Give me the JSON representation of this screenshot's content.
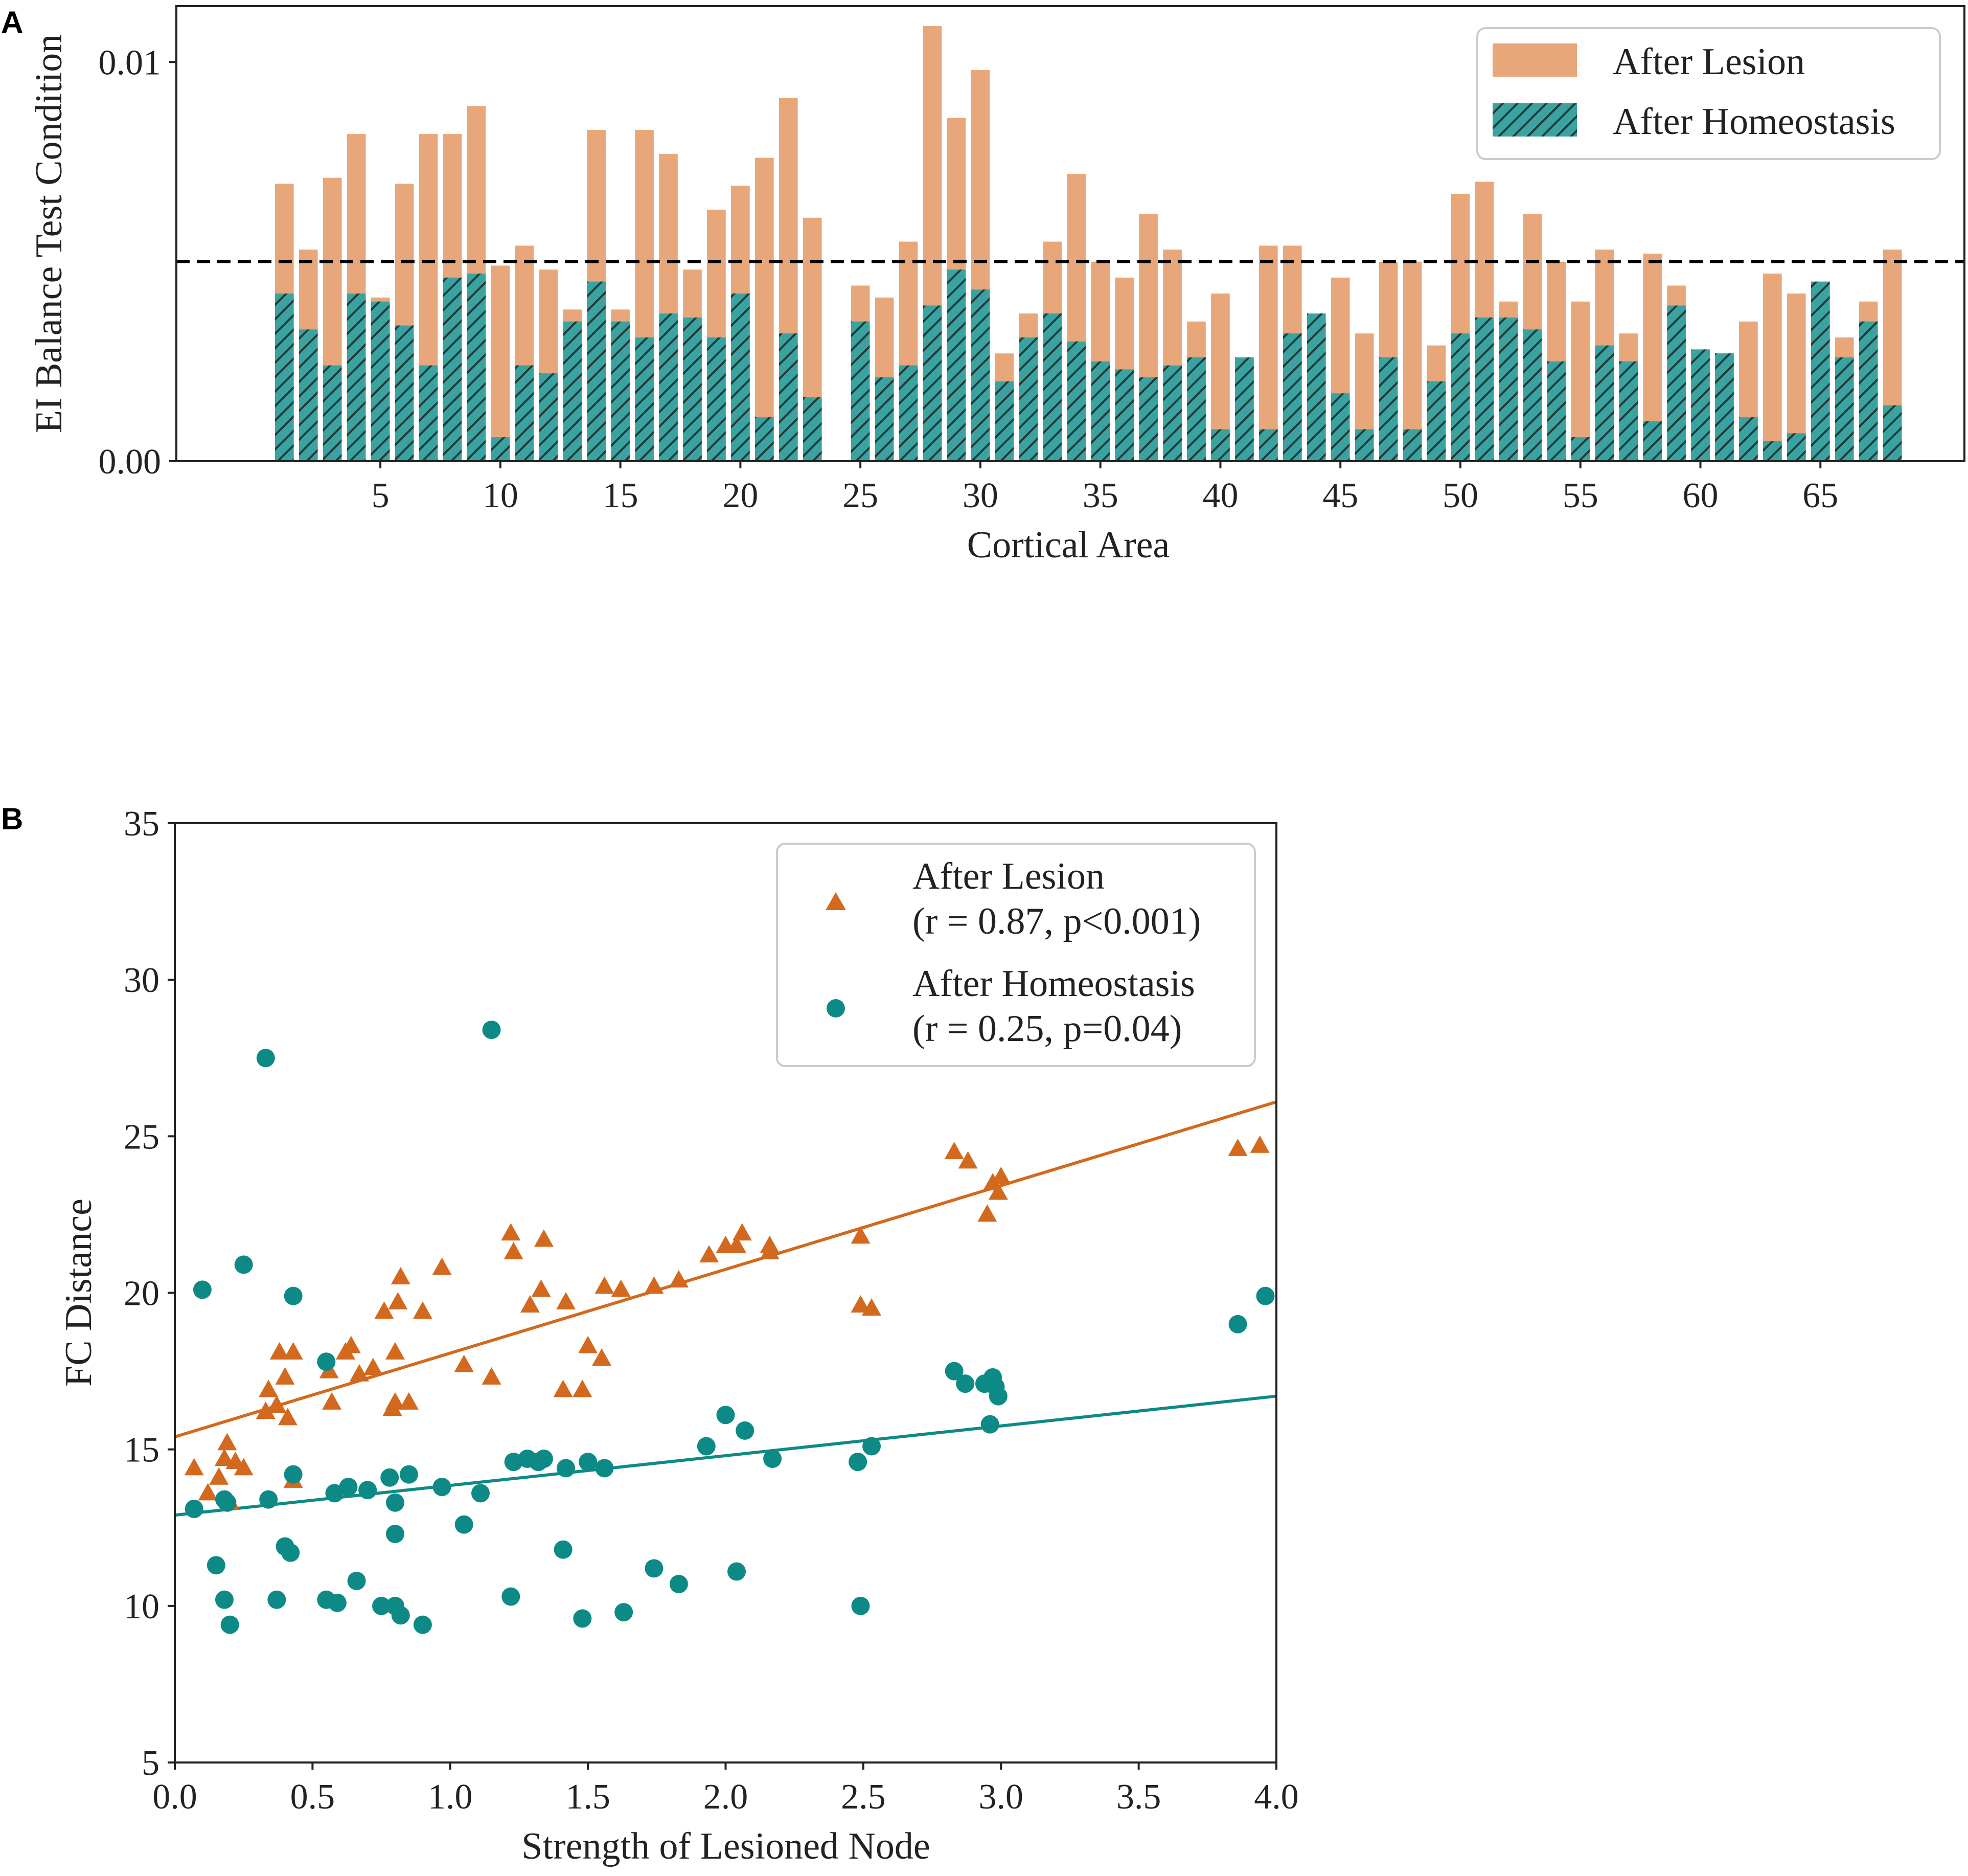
{
  "colors": {
    "lesion_bar": "#e8a77a",
    "homeo_bar": "#3aa3a1",
    "homeo_hatch": "#1f3b38",
    "lesion_marker": "#d2691e",
    "homeo_marker": "#0e8a86",
    "axis": "#222222",
    "threshold": "#000000"
  },
  "chart_data": [
    {
      "panel": "A",
      "type": "bar",
      "xlabel": "Cortical Area",
      "ylabel": "EI Balance Test Condition",
      "xlim": [
        -3.5,
        71
      ],
      "ylim": [
        0,
        0.0114
      ],
      "xticks": [
        5,
        10,
        15,
        20,
        25,
        30,
        35,
        40,
        45,
        50,
        55,
        60,
        65
      ],
      "yticks": [
        {
          "value": 0,
          "label": "0.00"
        },
        {
          "value": 0.01,
          "label": "0.01"
        }
      ],
      "threshold": 0.005,
      "legend_location": "upper right",
      "legend": [
        "After Lesion",
        "After Homeostasis"
      ],
      "categories": [
        1,
        2,
        3,
        4,
        5,
        6,
        7,
        8,
        9,
        10,
        11,
        12,
        13,
        14,
        15,
        16,
        17,
        18,
        19,
        20,
        21,
        22,
        23,
        24,
        25,
        26,
        27,
        28,
        29,
        30,
        31,
        32,
        33,
        34,
        35,
        36,
        37,
        38,
        39,
        40,
        41,
        42,
        43,
        44,
        45,
        46,
        47,
        48,
        49,
        50,
        51,
        52,
        53,
        54,
        55,
        56,
        57,
        58,
        59,
        60,
        61,
        62,
        63,
        64,
        65,
        66,
        67,
        68
      ],
      "series": [
        {
          "name": "After Lesion",
          "values": [
            0.00695,
            0.0053,
            0.0071,
            0.0082,
            0.0041,
            0.00695,
            0.0082,
            0.0082,
            0.0089,
            0.0049,
            0.0054,
            0.0048,
            0.0038,
            0.0083,
            0.0038,
            0.0083,
            0.0077,
            0.0048,
            0.0063,
            0.0069,
            0.0076,
            0.0091,
            0.0061,
            0,
            0.0044,
            0.0041,
            0.0055,
            0.0109,
            0.0086,
            0.0098,
            0.0027,
            0.0037,
            0.0055,
            0.0072,
            0.005,
            0.0046,
            0.0062,
            0.0053,
            0.0035,
            0.0042,
            0.0026,
            0.0054,
            0.0054,
            0.0036,
            0.0046,
            0.0032,
            0.005,
            0.005,
            0.0029,
            0.0067,
            0.007,
            0.004,
            0.0062,
            0.005,
            0.004,
            0.0053,
            0.0032,
            0.0052,
            0.0044,
            0.0028,
            0.0027,
            0.0035,
            0.0047,
            0.0042,
            0.0045,
            0.0031,
            0.004,
            0.0053
          ]
        },
        {
          "name": "After Homeostasis",
          "values": [
            0.0042,
            0.0033,
            0.0024,
            0.0042,
            0.004,
            0.0034,
            0.0024,
            0.0046,
            0.0047,
            0.0006,
            0.0024,
            0.0022,
            0.0035,
            0.0045,
            0.0035,
            0.0031,
            0.0037,
            0.0036,
            0.0031,
            0.0042,
            0.0011,
            0.0032,
            0.0016,
            0,
            0.0035,
            0.0021,
            0.0024,
            0.0039,
            0.0048,
            0.0043,
            0.002,
            0.0031,
            0.0037,
            0.003,
            0.0025,
            0.0023,
            0.0021,
            0.0024,
            0.0026,
            0.0008,
            0.0026,
            0.0008,
            0.0032,
            0.0037,
            0.0017,
            0.0008,
            0.0026,
            0.0008,
            0.002,
            0.0032,
            0.0036,
            0.0036,
            0.0033,
            0.0025,
            0.0006,
            0.0029,
            0.0025,
            0.001,
            0.0039,
            0.0028,
            0.0027,
            0.0011,
            0.0005,
            0.0007,
            0.0045,
            0.0026,
            0.0035,
            0.0014
          ]
        }
      ]
    },
    {
      "panel": "B",
      "type": "scatter",
      "xlabel": "Strength of Lesioned Node",
      "ylabel": "FC Distance",
      "xlim": [
        0,
        4
      ],
      "ylim": [
        5,
        35
      ],
      "xticks": [
        {
          "value": 0,
          "label": "0.0"
        },
        {
          "value": 0.5,
          "label": "0.5"
        },
        {
          "value": 1,
          "label": "1.0"
        },
        {
          "value": 1.5,
          "label": "1.5"
        },
        {
          "value": 2,
          "label": "2.0"
        },
        {
          "value": 2.5,
          "label": "2.5"
        },
        {
          "value": 3,
          "label": "3.0"
        },
        {
          "value": 3.5,
          "label": "3.5"
        },
        {
          "value": 4,
          "label": "4.0"
        }
      ],
      "yticks": [
        5,
        10,
        15,
        20,
        25,
        30,
        35
      ],
      "legend_location": "upper right",
      "series": [
        {
          "name": "After Lesion",
          "stats": "(r = 0.87, p<0.001)",
          "marker": "triangle",
          "fit": {
            "x0": 0,
            "y0": 15.4,
            "x1": 4,
            "y1": 26.1
          },
          "points": [
            [
              0.07,
              14.4
            ],
            [
              0.12,
              13.6
            ],
            [
              0.16,
              14.1
            ],
            [
              0.18,
              14.7
            ],
            [
              0.19,
              15.2
            ],
            [
              0.2,
              13.3
            ],
            [
              0.22,
              14.6
            ],
            [
              0.25,
              14.4
            ],
            [
              0.33,
              16.2
            ],
            [
              0.34,
              16.9
            ],
            [
              0.37,
              16.4
            ],
            [
              0.38,
              18.1
            ],
            [
              0.4,
              17.3
            ],
            [
              0.41,
              16.0
            ],
            [
              0.43,
              18.1
            ],
            [
              0.43,
              14.0
            ],
            [
              0.56,
              17.5
            ],
            [
              0.57,
              16.5
            ],
            [
              0.62,
              18.1
            ],
            [
              0.64,
              18.3
            ],
            [
              0.67,
              17.4
            ],
            [
              0.72,
              17.6
            ],
            [
              0.76,
              19.4
            ],
            [
              0.79,
              16.3
            ],
            [
              0.8,
              18.1
            ],
            [
              0.8,
              16.5
            ],
            [
              0.81,
              19.7
            ],
            [
              0.82,
              20.5
            ],
            [
              0.85,
              16.5
            ],
            [
              0.9,
              19.4
            ],
            [
              0.97,
              20.8
            ],
            [
              1.05,
              17.7
            ],
            [
              1.15,
              17.3
            ],
            [
              1.22,
              21.9
            ],
            [
              1.23,
              21.3
            ],
            [
              1.29,
              19.6
            ],
            [
              1.33,
              20.1
            ],
            [
              1.34,
              21.7
            ],
            [
              1.41,
              16.9
            ],
            [
              1.42,
              19.7
            ],
            [
              1.48,
              16.9
            ],
            [
              1.5,
              18.3
            ],
            [
              1.55,
              17.9
            ],
            [
              1.56,
              20.2
            ],
            [
              1.62,
              20.1
            ],
            [
              1.74,
              20.2
            ],
            [
              1.83,
              20.4
            ],
            [
              1.94,
              21.2
            ],
            [
              2.0,
              21.5
            ],
            [
              2.04,
              21.5
            ],
            [
              2.06,
              21.9
            ],
            [
              2.16,
              21.5
            ],
            [
              2.16,
              21.3
            ],
            [
              2.49,
              21.8
            ],
            [
              2.49,
              19.6
            ],
            [
              2.53,
              19.5
            ],
            [
              2.83,
              24.5
            ],
            [
              2.88,
              24.2
            ],
            [
              2.95,
              22.5
            ],
            [
              2.97,
              23.5
            ],
            [
              2.99,
              23.2
            ],
            [
              3.0,
              23.7
            ],
            [
              3.86,
              24.6
            ],
            [
              3.94,
              24.7
            ]
          ]
        },
        {
          "name": "After Homeostasis",
          "stats": "(r = 0.25, p=0.04)",
          "marker": "circle",
          "fit": {
            "x0": 0,
            "y0": 12.9,
            "x1": 4,
            "y1": 16.7
          },
          "points": [
            [
              0.07,
              13.1
            ],
            [
              0.1,
              20.1
            ],
            [
              0.15,
              11.3
            ],
            [
              0.18,
              13.4
            ],
            [
              0.18,
              10.2
            ],
            [
              0.19,
              13.3
            ],
            [
              0.2,
              9.4
            ],
            [
              0.25,
              20.9
            ],
            [
              0.33,
              27.5
            ],
            [
              0.34,
              13.4
            ],
            [
              0.37,
              10.2
            ],
            [
              0.4,
              11.9
            ],
            [
              0.42,
              11.7
            ],
            [
              0.43,
              19.9
            ],
            [
              0.43,
              14.2
            ],
            [
              0.55,
              10.2
            ],
            [
              0.55,
              17.8
            ],
            [
              0.58,
              13.6
            ],
            [
              0.59,
              10.1
            ],
            [
              0.63,
              13.8
            ],
            [
              0.66,
              10.8
            ],
            [
              0.7,
              13.7
            ],
            [
              0.75,
              10.0
            ],
            [
              0.78,
              14.1
            ],
            [
              0.8,
              10.0
            ],
            [
              0.8,
              12.3
            ],
            [
              0.8,
              13.3
            ],
            [
              0.82,
              9.7
            ],
            [
              0.85,
              14.2
            ],
            [
              0.9,
              9.4
            ],
            [
              0.97,
              13.8
            ],
            [
              1.05,
              12.6
            ],
            [
              1.11,
              13.6
            ],
            [
              1.15,
              28.4
            ],
            [
              1.22,
              10.3
            ],
            [
              1.23,
              14.6
            ],
            [
              1.28,
              14.7
            ],
            [
              1.32,
              14.6
            ],
            [
              1.34,
              14.7
            ],
            [
              1.41,
              11.8
            ],
            [
              1.42,
              14.4
            ],
            [
              1.48,
              9.6
            ],
            [
              1.5,
              14.6
            ],
            [
              1.56,
              14.4
            ],
            [
              1.63,
              9.8
            ],
            [
              1.74,
              11.2
            ],
            [
              1.83,
              10.7
            ],
            [
              1.93,
              15.1
            ],
            [
              2.0,
              16.1
            ],
            [
              2.04,
              11.1
            ],
            [
              2.07,
              15.6
            ],
            [
              2.17,
              14.7
            ],
            [
              2.48,
              14.6
            ],
            [
              2.49,
              10.0
            ],
            [
              2.53,
              15.1
            ],
            [
              2.83,
              17.5
            ],
            [
              2.87,
              17.1
            ],
            [
              2.94,
              17.1
            ],
            [
              2.96,
              15.8
            ],
            [
              2.97,
              17.3
            ],
            [
              2.98,
              17.0
            ],
            [
              2.99,
              16.7
            ],
            [
              3.86,
              19.0
            ],
            [
              3.96,
              19.9
            ]
          ]
        }
      ]
    }
  ]
}
